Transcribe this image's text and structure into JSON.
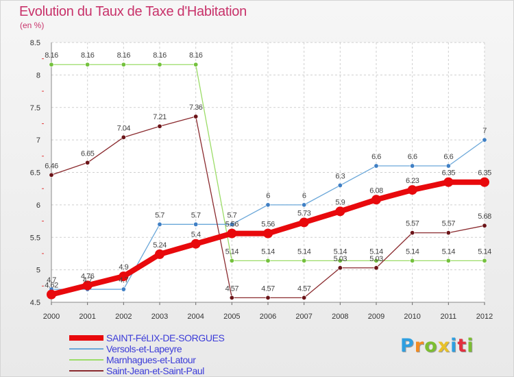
{
  "title": "Evolution du Taux de Taxe d'Habitation",
  "unit": "(en %)",
  "logo": {
    "text": "Proxiti",
    "letters": [
      "P",
      "r",
      "o",
      "x",
      "i",
      "t",
      "i"
    ],
    "colors": [
      "#2f9fe0",
      "#f28c22",
      "#7cbe31",
      "#e8c12a",
      "#2f9fe0",
      "#e2303f",
      "#7cbe31"
    ]
  },
  "chart_data": {
    "type": "line",
    "title": "Evolution du Taux de Taxe d'Habitation",
    "ylabel": "(en %)",
    "xlabel": "",
    "x": [
      "2000",
      "2001",
      "2002",
      "2003",
      "2004",
      "2005",
      "2006",
      "2007",
      "2008",
      "2009",
      "2010",
      "2011",
      "2012"
    ],
    "ylim": [
      4.5,
      8.5
    ],
    "yticks": [
      "4.5",
      "5",
      "5.5",
      "6",
      "6.5",
      "7",
      "7.5",
      "8",
      "8.5"
    ],
    "grid": true,
    "legend_position": "bottom-left",
    "series": [
      {
        "name": "SAINT-FéLIX-DE-SORGUES",
        "color": "#e8090c",
        "width": 8,
        "marker": 7,
        "values": [
          4.62,
          4.76,
          4.9,
          5.24,
          5.4,
          5.56,
          5.56,
          5.73,
          5.9,
          6.08,
          6.23,
          6.35,
          6.35
        ],
        "labels": [
          "4.62",
          "4.76",
          "4.9",
          "5.24",
          "5.4",
          "5.56",
          "5.56",
          "5.73",
          "5.9",
          "6.08",
          "6.23",
          "6.35",
          "6.35"
        ]
      },
      {
        "name": "Versols-et-Lapeyre",
        "color": "#6aa7d9",
        "marker_color": "#3f7fc4",
        "width": 1.3,
        "marker": 3.2,
        "values": [
          4.7,
          4.7,
          4.7,
          5.7,
          5.7,
          5.7,
          6,
          6,
          6.3,
          6.6,
          6.6,
          6.6,
          7
        ],
        "labels": [
          "4.7",
          "4.7",
          "4.7",
          "5.7",
          "5.7",
          "5.7",
          "6",
          "6",
          "6.3",
          "6.6",
          "6.6",
          "6.6",
          "7"
        ]
      },
      {
        "name": "Marnhagues-et-Latour",
        "color": "#9bdc67",
        "marker_color": "#74c13d",
        "width": 1.3,
        "marker": 3.2,
        "values": [
          8.16,
          8.16,
          8.16,
          8.16,
          8.16,
          5.14,
          5.14,
          5.14,
          5.14,
          5.14,
          5.14,
          5.14,
          5.14
        ],
        "labels": [
          "8.16",
          "8.16",
          "8.16",
          "8.16",
          "8.16",
          "5.14",
          "5.14",
          "5.14",
          "5.14",
          "5.14",
          "5.14",
          "5.14",
          "5.14"
        ]
      },
      {
        "name": "Saint-Jean-et-Saint-Paul",
        "color": "#8a2a2e",
        "marker_color": "#6b1418",
        "width": 1.3,
        "marker": 3.2,
        "values": [
          6.46,
          6.65,
          7.04,
          7.21,
          7.36,
          4.57,
          4.57,
          4.57,
          5.03,
          5.03,
          5.57,
          5.57,
          5.68
        ],
        "labels": [
          "6.46",
          "6.65",
          "7.04",
          "7.21",
          "7.36",
          "4.57",
          "4.57",
          "4.57",
          "5.03",
          "5.03",
          "5.57",
          "5.57",
          "5.68"
        ]
      }
    ]
  }
}
